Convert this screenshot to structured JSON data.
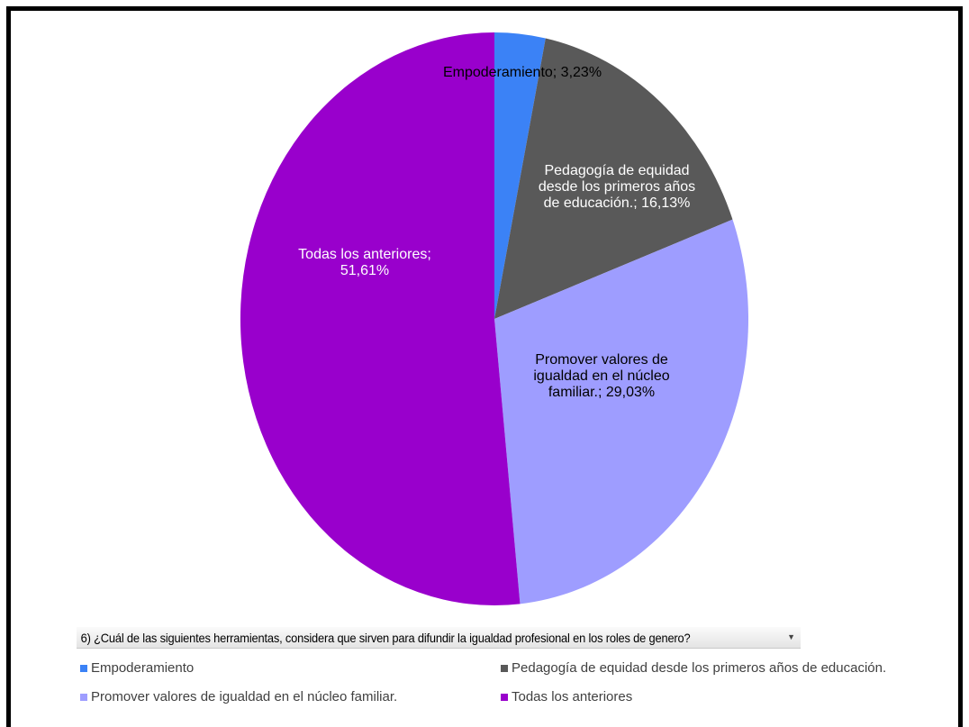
{
  "chart_data": {
    "type": "pie",
    "slices": [
      {
        "name": "Empoderamiento",
        "value": 3.23,
        "color": "#3b82f6",
        "label": "Empoderamiento; 3,23%"
      },
      {
        "name": "Pedagogía de equidad desde los primeros años de educación.",
        "value": 16.13,
        "color": "#595959",
        "label": "Pedagogía de equidad\ndesde los primeros años\nde educación.; 16,13%"
      },
      {
        "name": "Promover valores de igualdad en el núcleo familiar.",
        "value": 29.03,
        "color": "#9e9dff",
        "label": "Promover valores de\nigualdad en el núcleo\nfamiliar.; 29,03%"
      },
      {
        "name": "Todas los anteriores",
        "value": 51.61,
        "color": "#9900cc",
        "label": "Todas los anteriores;\n51,61%"
      }
    ],
    "legend": {
      "items": [
        "Empoderamiento",
        "Pedagogía de equidad desde los primeros años de educación.",
        "Promover valores de igualdad en el núcleo familiar.",
        "Todas los anteriores"
      ],
      "placement": "bottom"
    }
  },
  "filter": {
    "question": "6) ¿Cuál de las siguientes herramientas, considera que sirven para difundir la igualdad profesional en los roles de genero?",
    "arrow_icon": "dropdown-arrow-icon"
  }
}
